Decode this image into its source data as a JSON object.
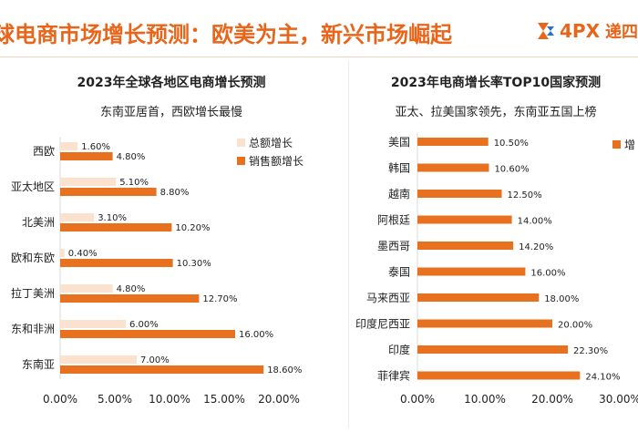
{
  "header": {
    "title": "球电商市场增长预测：欧美为主，新兴市场崛起",
    "brand_logo": "4PX",
    "brand_text": "递四"
  },
  "colors": {
    "accent": "#e8651a",
    "light_bar": "#fbe2cf",
    "dark_bar": "#e8711f"
  },
  "chart_data": [
    {
      "type": "bar",
      "orientation": "horizontal",
      "title": "2023年全球各地区电商增长预测",
      "subtitle": "东南亚居首，西欧增长最慢",
      "categories": [
        "西欧",
        "亚太地区",
        "北美洲",
        "欧和东欧",
        "拉丁美洲",
        "东和非洲",
        "东南亚"
      ],
      "series": [
        {
          "name": "总额增长",
          "values": [
            1.6,
            5.1,
            3.1,
            0.4,
            4.8,
            6.0,
            7.0
          ],
          "labels": [
            "1.60%",
            "5.10%",
            "3.10%",
            "0.40%",
            "4.80%",
            "6.00%",
            "7.00%"
          ],
          "color": "#fbe2cf"
        },
        {
          "name": "销售额增长",
          "values": [
            4.8,
            8.8,
            10.2,
            10.3,
            12.7,
            16.0,
            18.6
          ],
          "labels": [
            "4.80%",
            "8.80%",
            "10.20%",
            "10.30%",
            "12.70%",
            "16.00%",
            "18.60%"
          ],
          "color": "#e8711f"
        }
      ],
      "xlim": [
        0,
        20
      ],
      "xticks": [
        "0.00%",
        "5.00%",
        "10.00%",
        "15.00%",
        "20.00%"
      ],
      "legend": "top-right"
    },
    {
      "type": "bar",
      "orientation": "horizontal",
      "title": "2023年电商增长率TOP10国家预测",
      "subtitle": "亚太、拉美国家领先，东南亚五国上榜",
      "categories": [
        "美国",
        "韩国",
        "越南",
        "阿根廷",
        "墨西哥",
        "泰国",
        "马来西亚",
        "印度尼西亚",
        "印度",
        "菲律宾"
      ],
      "series": [
        {
          "name": "增",
          "values": [
            10.5,
            10.6,
            12.5,
            14.0,
            14.2,
            16.0,
            18.0,
            20.0,
            22.3,
            24.1
          ],
          "labels": [
            "10.50%",
            "10.60%",
            "12.50%",
            "14.00%",
            "14.20%",
            "16.00%",
            "18.00%",
            "20.00%",
            "22.30%",
            "24.10%"
          ],
          "color": "#e8711f"
        }
      ],
      "xlim": [
        0,
        30
      ],
      "xticks": [
        "0.00%",
        "10.00%",
        "20.00%",
        "30.00%"
      ],
      "legend": "top-right"
    }
  ]
}
